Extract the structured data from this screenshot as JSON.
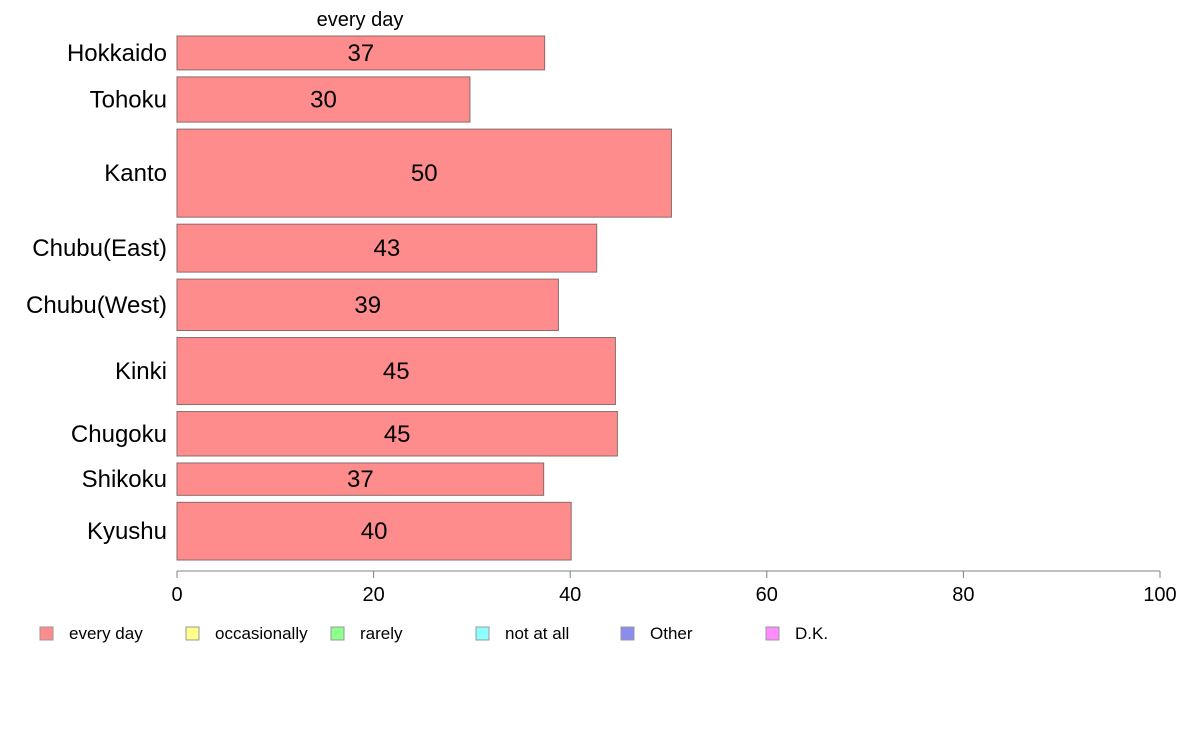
{
  "chart_data": {
    "type": "bar",
    "orientation": "horizontal",
    "stacked": true,
    "column_title": "every day",
    "categories": [
      "Hokkaido",
      "Tohoku",
      "Kanto",
      "Chubu(East)",
      "Chubu(West)",
      "Kinki",
      "Chugoku",
      "Shikoku",
      "Kyushu"
    ],
    "category_weights": [
      0.87,
      1.16,
      2.26,
      1.23,
      1.32,
      1.72,
      1.14,
      0.83,
      1.48
    ],
    "series": [
      {
        "name": "every day",
        "color": "#ff8c8c",
        "values": [
          37.4,
          29.8,
          50.3,
          42.7,
          38.8,
          44.6,
          44.8,
          37.3,
          40.1
        ],
        "labels": [
          "37",
          "30",
          "50",
          "43",
          "39",
          "45",
          "45",
          "37",
          "40"
        ]
      },
      {
        "name": "occasionally",
        "color": "#ffff8c"
      },
      {
        "name": "rarely",
        "color": "#8cff8c"
      },
      {
        "name": "not at all",
        "color": "#8cffff"
      },
      {
        "name": "Other",
        "color": "#8c8cf0"
      },
      {
        "name": "D.K.",
        "color": "#ff8cff"
      }
    ],
    "xlim": [
      0,
      100
    ],
    "x_ticks": [
      "0",
      "20",
      "40",
      "60",
      "80",
      "100"
    ],
    "grid": false,
    "legend_position": "bottom"
  }
}
